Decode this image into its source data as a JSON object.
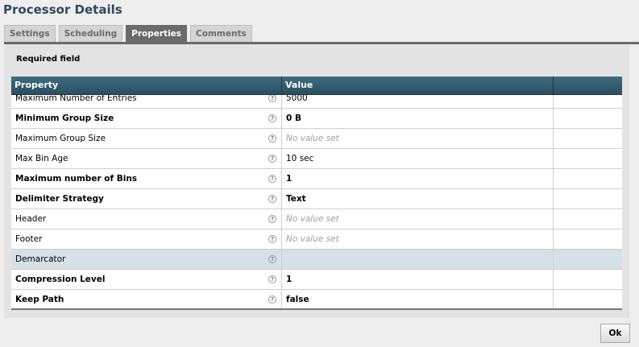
{
  "title": "Processor Details",
  "tabs": [
    {
      "label": "Settings"
    },
    {
      "label": "Scheduling"
    },
    {
      "label": "Properties",
      "active": true
    },
    {
      "label": "Comments"
    }
  ],
  "required_note": "Required field",
  "table": {
    "headers": [
      "Property",
      "Value",
      ""
    ],
    "rows": [
      {
        "property": "Maximum Number of Entries",
        "value": "5000",
        "required": false,
        "set": true
      },
      {
        "property": "Minimum Group Size",
        "value": "0 B",
        "required": true,
        "set": true
      },
      {
        "property": "Maximum Group Size",
        "value": "No value set",
        "required": false,
        "set": false
      },
      {
        "property": "Max Bin Age",
        "value": "10 sec",
        "required": false,
        "set": true
      },
      {
        "property": "Maximum number of Bins",
        "value": "1",
        "required": true,
        "set": true
      },
      {
        "property": "Delimiter Strategy",
        "value": "Text",
        "required": true,
        "set": true
      },
      {
        "property": "Header",
        "value": "No value set",
        "required": false,
        "set": false
      },
      {
        "property": "Footer",
        "value": "No value set",
        "required": false,
        "set": false
      },
      {
        "property": "Demarcator",
        "value": "",
        "required": false,
        "set": true,
        "selected": true
      },
      {
        "property": "Compression Level",
        "value": "1",
        "required": true,
        "set": true
      },
      {
        "property": "Keep Path",
        "value": "false",
        "required": true,
        "set": true
      }
    ]
  },
  "ok_label": "Ok",
  "help_icon": "?"
}
